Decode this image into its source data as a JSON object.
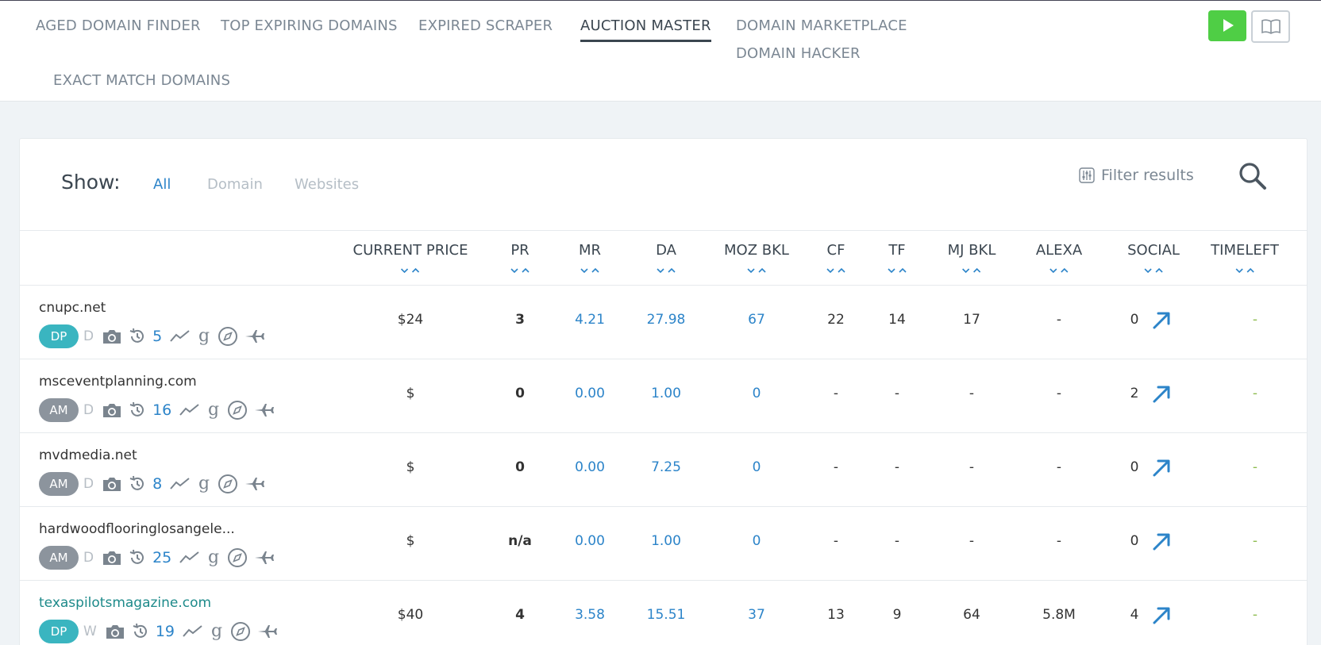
{
  "nav": {
    "items": [
      "AGED DOMAIN FINDER",
      "TOP EXPIRING DOMAINS",
      "EXPIRED SCRAPER",
      "AUCTION MASTER",
      "DOMAIN MARKETPLACE",
      "DOMAIN HACKER",
      "EXACT MATCH DOMAINS"
    ],
    "active": "AUCTION MASTER"
  },
  "filters": {
    "show_label": "Show:",
    "tabs": [
      "All",
      "Domain",
      "Websites"
    ],
    "active_tab": "All",
    "filter_results_label": "Filter results"
  },
  "table": {
    "columns": [
      "CURRENT PRICE",
      "PR",
      "MR",
      "DA",
      "MOZ BKL",
      "CF",
      "TF",
      "MJ BKL",
      "ALEXA",
      "SOCIAL",
      "TIMELEFT"
    ],
    "rows": [
      {
        "domain": "cnupc.net",
        "badge": "DP",
        "type": "D",
        "archive": "5",
        "price": "$24",
        "pr": "3",
        "mr": "4.21",
        "da": "27.98",
        "moz_bkl": "67",
        "cf": "22",
        "tf": "14",
        "mj_bkl": "17",
        "alexa": "-",
        "social": "0",
        "timeleft": "-"
      },
      {
        "domain": "msceventplanning.com",
        "badge": "AM",
        "type": "D",
        "archive": "16",
        "price": "$",
        "pr": "0",
        "mr": "0.00",
        "da": "1.00",
        "moz_bkl": "0",
        "cf": "-",
        "tf": "-",
        "mj_bkl": "-",
        "alexa": "-",
        "social": "2",
        "timeleft": "-"
      },
      {
        "domain": "mvdmedia.net",
        "badge": "AM",
        "type": "D",
        "archive": "8",
        "price": "$",
        "pr": "0",
        "mr": "0.00",
        "da": "7.25",
        "moz_bkl": "0",
        "cf": "-",
        "tf": "-",
        "mj_bkl": "-",
        "alexa": "-",
        "social": "0",
        "timeleft": "-"
      },
      {
        "domain": "hardwoodflooringlosangele...",
        "badge": "AM",
        "type": "D",
        "archive": "25",
        "price": "$",
        "pr": "n/a",
        "mr": "0.00",
        "da": "1.00",
        "moz_bkl": "0",
        "cf": "-",
        "tf": "-",
        "mj_bkl": "-",
        "alexa": "-",
        "social": "0",
        "timeleft": "-"
      },
      {
        "domain": "texaspilotsmagazine.com",
        "badge": "DP",
        "type": "W",
        "archive": "19",
        "price": "$40",
        "pr": "4",
        "mr": "3.58",
        "da": "15.51",
        "moz_bkl": "37",
        "cf": "13",
        "tf": "9",
        "mj_bkl": "64",
        "alexa": "5.8M",
        "social": "4",
        "timeleft": "-"
      }
    ]
  },
  "colors": {
    "accent_blue": "#2c84c9",
    "play_green": "#4fce45",
    "badge_dp": "#3ab5c0",
    "badge_am": "#8c949d",
    "timeleft_green": "#8dbb4e"
  },
  "icons": [
    "play-icon",
    "book-icon",
    "filter-icon",
    "search-icon",
    "camera-icon",
    "history-icon",
    "trend-icon",
    "google-icon",
    "compass-icon",
    "plane-icon",
    "external-link-arrow-icon",
    "sort-desc-icon",
    "sort-asc-icon"
  ]
}
